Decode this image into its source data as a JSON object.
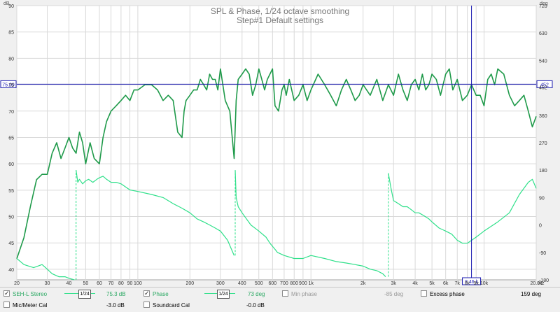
{
  "chart_title": "SPL & Phase, 1/24 octave smoothing",
  "chart_subtitle": "Step#1 Default settings",
  "units": {
    "left": "dB",
    "right": "deg",
    "x": "Hz"
  },
  "colors": {
    "spl": "#1f9a4a",
    "phase": "#2fe08a",
    "cursor": "#1a1ab0",
    "grid": "#d8d8d8",
    "bg": "#ffffff"
  },
  "x_ticks": [
    "20",
    "30",
    "40",
    "50",
    "60",
    "70",
    "80",
    "90",
    "100",
    "200",
    "300",
    "400",
    "500",
    "600",
    "700",
    "800",
    "900",
    "1k",
    "2k",
    "3k",
    "4k",
    "5k",
    "6k",
    "7k",
    "8k",
    "9k",
    "10k",
    "20.0k"
  ],
  "x_unit_label": "Hz",
  "y_left_ticks": [
    "90",
    "85",
    "80",
    "75",
    "70",
    "65",
    "60",
    "55",
    "50",
    "45",
    "40"
  ],
  "y_right_ticks": [
    "720",
    "630",
    "540",
    "452",
    "360",
    "270",
    "180",
    "90",
    "0",
    "-90",
    "-180"
  ],
  "cursor": {
    "x_label": "8.46 k",
    "y_left": "75.09",
    "y_right": "452"
  },
  "legend": {
    "row1": [
      {
        "name": "SEH-L Stereo",
        "checked": true,
        "smoothing": "1/24",
        "value": "75.3 dB",
        "color": "#2fe08a"
      },
      {
        "name": "Phase",
        "checked": true,
        "smoothing": "1/24",
        "value": "73 deg",
        "color": "#2fe08a"
      },
      {
        "name": "Min phase",
        "checked": false,
        "value": "-85 deg"
      },
      {
        "name": "Excess phase",
        "checked": false,
        "value": "159 deg"
      }
    ],
    "row2": [
      {
        "name": "Mic/Meter Cal",
        "checked": false,
        "value": "-3.0 dB"
      },
      {
        "name": "Soundcard Cal",
        "checked": false,
        "value": "-0.0 dB"
      }
    ]
  },
  "chart_data": {
    "type": "line",
    "title": "SPL & Phase, 1/24 octave smoothing",
    "subtitle": "Step#1 Default settings",
    "x_scale": "log",
    "xlim": [
      20,
      20000
    ],
    "ylim_left": [
      38,
      90
    ],
    "ylim_right": [
      -180,
      720
    ],
    "series": [
      {
        "name": "SEH-L Stereo",
        "axis": "left",
        "x": [
          20,
          22,
          24,
          26,
          28,
          30,
          32,
          34,
          36,
          38,
          40,
          42,
          44,
          46,
          48,
          50,
          53,
          56,
          60,
          63,
          66,
          70,
          75,
          80,
          85,
          90,
          95,
          100,
          110,
          120,
          130,
          140,
          150,
          160,
          170,
          180,
          185,
          190,
          200,
          210,
          220,
          230,
          240,
          250,
          260,
          270,
          280,
          290,
          300,
          320,
          340,
          360,
          370,
          380,
          400,
          420,
          440,
          460,
          480,
          500,
          520,
          540,
          560,
          600,
          620,
          650,
          680,
          700,
          720,
          750,
          800,
          850,
          900,
          950,
          1000,
          1100,
          1200,
          1300,
          1400,
          1500,
          1600,
          1700,
          1800,
          1900,
          2000,
          2200,
          2400,
          2500,
          2600,
          2800,
          3000,
          3200,
          3400,
          3600,
          3800,
          4000,
          4200,
          4400,
          4600,
          4800,
          5000,
          5300,
          5600,
          6000,
          6300,
          6600,
          7000,
          7500,
          8000,
          8460,
          9000,
          9500,
          10000,
          10500,
          11000,
          11500,
          12000,
          13000,
          14000,
          15000,
          16000,
          17000,
          18000,
          19000,
          20000
        ],
        "y": [
          42,
          46,
          52,
          57,
          58,
          58,
          62,
          64,
          61,
          63,
          65,
          63,
          62,
          66,
          64,
          60,
          64,
          61,
          60,
          65,
          68,
          70,
          71,
          72,
          73,
          72,
          74,
          74,
          75,
          75,
          74,
          72,
          73,
          72,
          66,
          65,
          70,
          72,
          73,
          74,
          74,
          76,
          75,
          74,
          77,
          76,
          76,
          74,
          78,
          72,
          70,
          61,
          72,
          76,
          77,
          78,
          77,
          73,
          75,
          78,
          76,
          74,
          76,
          78,
          71,
          70,
          74,
          75,
          73,
          76,
          72,
          73,
          75,
          72,
          74,
          77,
          75,
          73,
          71,
          74,
          76,
          74,
          72,
          73,
          75,
          73,
          76,
          74,
          72,
          75,
          73,
          77,
          74,
          72,
          75,
          76,
          74,
          77,
          74,
          75,
          77,
          76,
          73,
          77,
          78,
          74,
          76,
          72,
          73,
          75,
          73,
          73,
          71,
          76,
          77,
          75,
          78,
          77,
          73,
          71,
          72,
          73,
          70,
          67,
          69
        ]
      },
      {
        "name": "Phase",
        "axis": "right",
        "x": [
          20,
          22,
          25,
          28,
          30,
          32,
          35,
          38,
          40,
          43,
          44,
          45,
          46,
          48,
          50,
          52,
          55,
          58,
          60,
          63,
          66,
          70,
          75,
          80,
          90,
          100,
          120,
          140,
          160,
          180,
          200,
          220,
          240,
          260,
          280,
          300,
          330,
          360,
          365,
          370,
          380,
          400,
          450,
          500,
          550,
          580,
          600,
          620,
          640,
          700,
          800,
          900,
          1000,
          1200,
          1400,
          1600,
          1800,
          2000,
          2200,
          2400,
          2600,
          2700,
          2800,
          2900,
          3000,
          3200,
          3400,
          3600,
          3800,
          4000,
          4200,
          4500,
          4800,
          5000,
          5500,
          6000,
          6500,
          7000,
          7500,
          8000,
          9000,
          10000,
          12000,
          14000,
          16000,
          18000,
          19000,
          20000
        ],
        "y": [
          -110,
          -130,
          -140,
          -130,
          -145,
          -160,
          -170,
          -170,
          -175,
          -180,
          180,
          140,
          150,
          135,
          145,
          150,
          140,
          150,
          155,
          160,
          150,
          140,
          140,
          135,
          115,
          110,
          100,
          90,
          70,
          55,
          40,
          20,
          10,
          0,
          -10,
          -20,
          -50,
          -100,
          180,
          90,
          60,
          40,
          0,
          -20,
          -40,
          -60,
          -70,
          -80,
          -90,
          -100,
          -110,
          -110,
          -100,
          -110,
          -120,
          -125,
          -130,
          -135,
          -145,
          -150,
          -160,
          -170,
          170,
          120,
          80,
          70,
          60,
          60,
          50,
          40,
          40,
          30,
          20,
          10,
          -10,
          -20,
          -30,
          -50,
          -60,
          -60,
          -40,
          -20,
          10,
          40,
          100,
          140,
          150,
          120
        ]
      }
    ]
  }
}
